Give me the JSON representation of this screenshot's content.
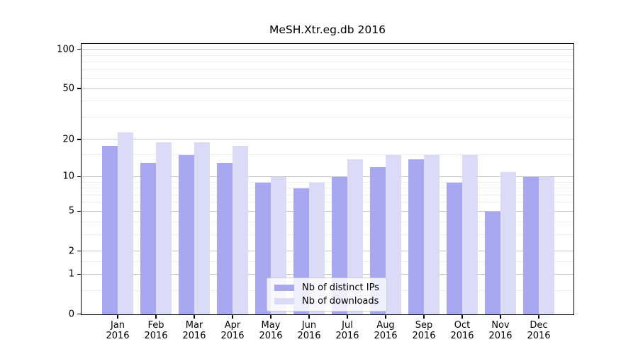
{
  "chart_data": {
    "type": "bar",
    "title": "MeSH.Xtr.eg.db 2016",
    "categories": [
      "Jan",
      "Feb",
      "Mar",
      "Apr",
      "May",
      "Jun",
      "Jul",
      "Aug",
      "Sep",
      "Oct",
      "Nov",
      "Dec"
    ],
    "category_year": "2016",
    "series": [
      {
        "name": "Nb of distinct IPs",
        "color": "#a8a8f0",
        "values": [
          18,
          13,
          15,
          13,
          9,
          8,
          10,
          12,
          14,
          9,
          5,
          10
        ]
      },
      {
        "name": "Nb of downloads",
        "color": "#dbdbf7",
        "values": [
          23,
          19,
          19,
          18,
          10,
          9,
          14,
          15,
          15,
          15,
          11,
          10
        ]
      }
    ],
    "yscale": "log1p",
    "ylim": [
      0,
      100
    ],
    "yticks": [
      0,
      1,
      2,
      5,
      10,
      20,
      50,
      100
    ],
    "minor_yticks": [
      0.5,
      1.5,
      3,
      4,
      6,
      7,
      8,
      9,
      15,
      30,
      40,
      60,
      70,
      80,
      90
    ],
    "xlabel": "",
    "ylabel": "",
    "grid": true,
    "legend_position": "lower-center",
    "colors": {
      "axis": "#000000",
      "major_grid": "#c4c4c4",
      "minor_grid": "#ececec",
      "background": "#ffffff"
    }
  }
}
